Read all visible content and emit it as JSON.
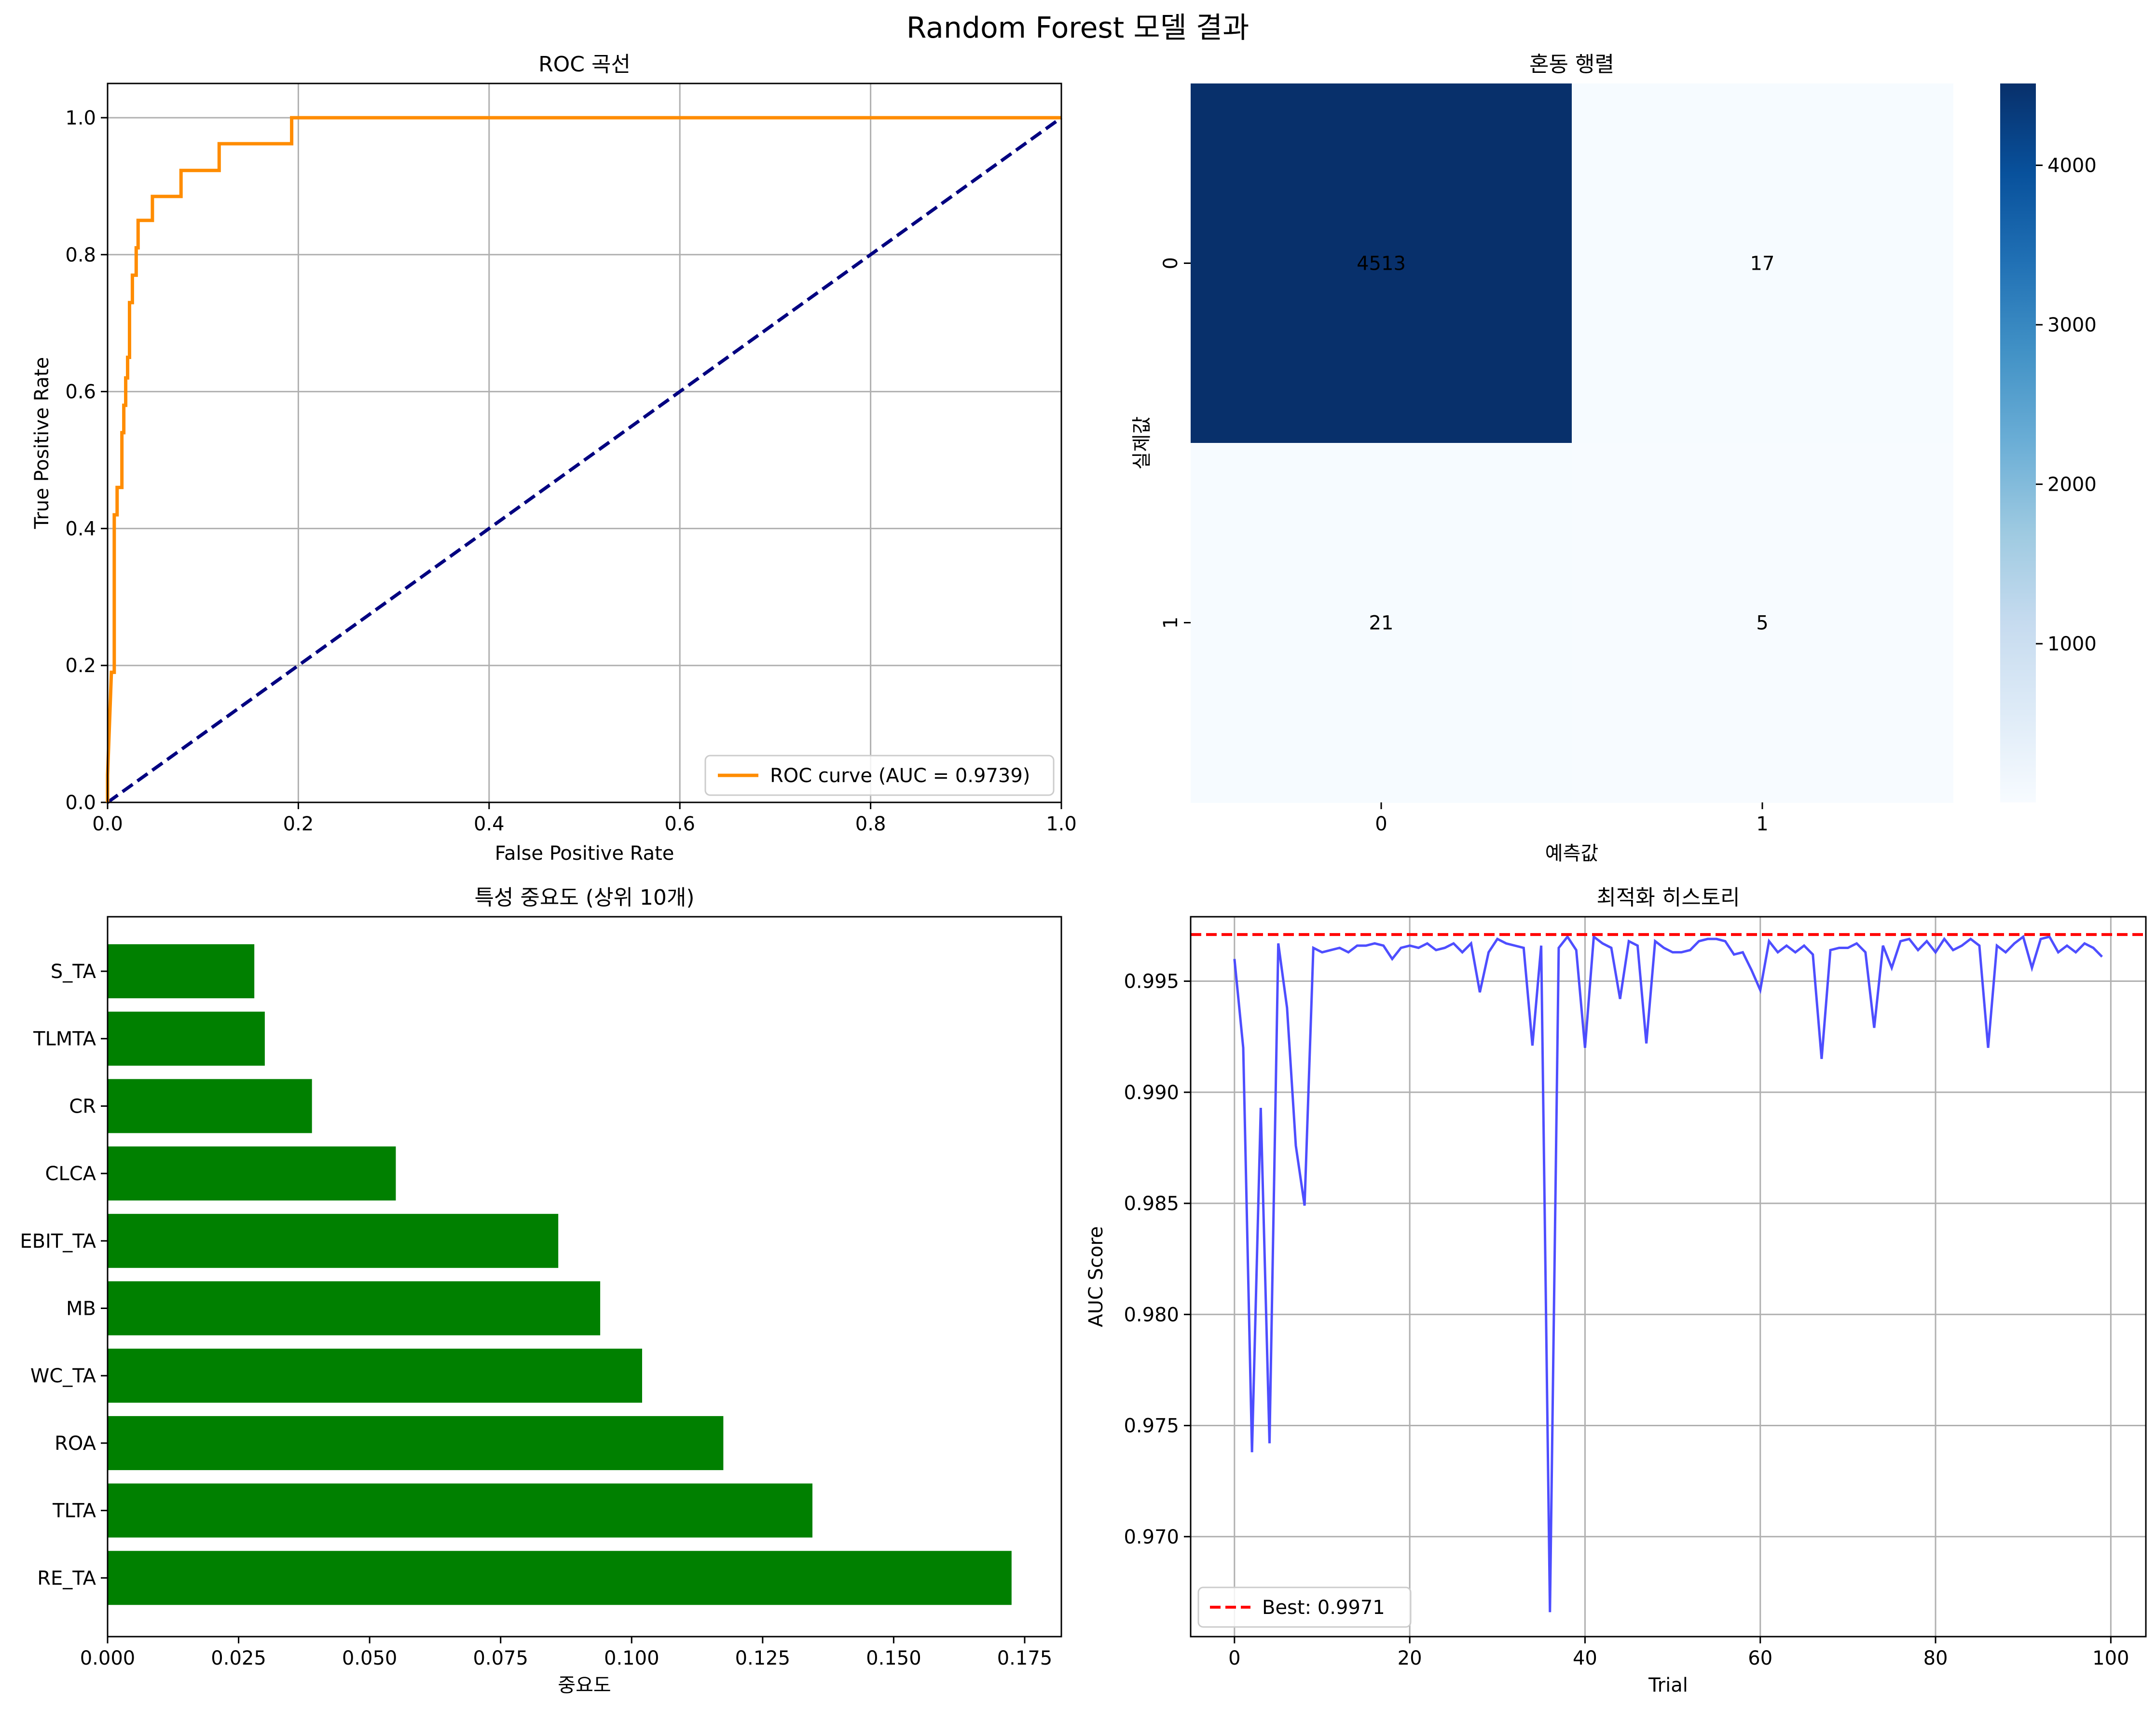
{
  "figure_title": "Random Forest 모델 결과",
  "colors": {
    "roc": "#ff8c00",
    "diagonal": "#000080",
    "bars": "#008000",
    "history": "#4444ff",
    "best": "#ff0000",
    "grid": "#b0b0b0",
    "cm_low": "#f7fbff",
    "cm_high": "#08306b"
  },
  "chart_data": [
    {
      "type": "line",
      "title": "ROC 곡선",
      "xlabel": "False Positive Rate",
      "ylabel": "True Positive Rate",
      "xlim": [
        0,
        1
      ],
      "ylim": [
        0,
        1.05
      ],
      "xticks": [
        "0.0",
        "0.2",
        "0.4",
        "0.6",
        "0.8",
        "1.0"
      ],
      "yticks": [
        "0.0",
        "0.2",
        "0.4",
        "0.6",
        "0.8",
        "1.0"
      ],
      "grid": true,
      "legend_position": "lower right",
      "series": [
        {
          "name": "ROC curve (AUC = 0.9739)",
          "style": "solid",
          "points": [
            [
              0,
              0
            ],
            [
              0,
              0.04
            ],
            [
              0.004,
              0.19
            ],
            [
              0.007,
              0.19
            ],
            [
              0.007,
              0.42
            ],
            [
              0.01,
              0.42
            ],
            [
              0.01,
              0.46
            ],
            [
              0.015,
              0.46
            ],
            [
              0.015,
              0.54
            ],
            [
              0.017,
              0.54
            ],
            [
              0.017,
              0.58
            ],
            [
              0.019,
              0.58
            ],
            [
              0.019,
              0.62
            ],
            [
              0.021,
              0.62
            ],
            [
              0.021,
              0.65
            ],
            [
              0.023,
              0.65
            ],
            [
              0.023,
              0.73
            ],
            [
              0.026,
              0.73
            ],
            [
              0.026,
              0.77
            ],
            [
              0.03,
              0.77
            ],
            [
              0.03,
              0.81
            ],
            [
              0.032,
              0.81
            ],
            [
              0.032,
              0.85
            ],
            [
              0.047,
              0.85
            ],
            [
              0.047,
              0.885
            ],
            [
              0.077,
              0.885
            ],
            [
              0.077,
              0.923
            ],
            [
              0.117,
              0.923
            ],
            [
              0.117,
              0.962
            ],
            [
              0.193,
              0.962
            ],
            [
              0.193,
              1.0
            ],
            [
              1.0,
              1.0
            ]
          ]
        },
        {
          "name": "",
          "style": "dashed",
          "points": [
            [
              0,
              0
            ],
            [
              1,
              1
            ]
          ]
        }
      ]
    },
    {
      "type": "heatmap",
      "title": "혼동 행렬",
      "xlabel": "예측값",
      "ylabel": "실제값",
      "x_categories": [
        "0",
        "1"
      ],
      "y_categories": [
        "0",
        "1"
      ],
      "values": [
        [
          4513,
          17
        ],
        [
          21,
          5
        ]
      ],
      "colorbar_ticks": [
        "1000",
        "2000",
        "3000",
        "4000"
      ],
      "colorbar_range": [
        5,
        4513
      ]
    },
    {
      "type": "bar",
      "orientation": "horizontal",
      "title": "특성 중요도 (상위 10개)",
      "xlabel": "중요도",
      "ylabel": "",
      "categories": [
        "RE_TA",
        "TLTA",
        "ROA",
        "WC_TA",
        "MB",
        "EBIT_TA",
        "CLCA",
        "CR",
        "TLMTA",
        "S_TA"
      ],
      "values": [
        0.1725,
        0.1345,
        0.1175,
        0.102,
        0.094,
        0.086,
        0.055,
        0.039,
        0.03,
        0.028
      ],
      "xlim": [
        0,
        0.182
      ],
      "xticks": [
        "0.000",
        "0.025",
        "0.050",
        "0.075",
        "0.100",
        "0.125",
        "0.150",
        "0.175"
      ]
    },
    {
      "type": "line",
      "title": "최적화 히스토리",
      "xlabel": "Trial",
      "ylabel": "AUC Score",
      "xlim": [
        -5,
        104
      ],
      "ylim": [
        0.9655,
        0.9979
      ],
      "xticks": [
        "0",
        "20",
        "40",
        "60",
        "80",
        "100"
      ],
      "yticks": [
        "0.970",
        "0.975",
        "0.980",
        "0.985",
        "0.990",
        "0.995"
      ],
      "grid": true,
      "legend_position": "lower left",
      "series": [
        {
          "name": "",
          "values": [
            0.996,
            0.992,
            0.9738,
            0.9893,
            0.9742,
            0.9967,
            0.9938,
            0.9876,
            0.9849,
            0.9965,
            0.9963,
            0.9964,
            0.9965,
            0.9963,
            0.9966,
            0.9966,
            0.9967,
            0.9966,
            0.996,
            0.9965,
            0.9966,
            0.9965,
            0.9967,
            0.9964,
            0.9965,
            0.9967,
            0.9963,
            0.9967,
            0.9945,
            0.9963,
            0.9969,
            0.9967,
            0.9966,
            0.9965,
            0.9921,
            0.9966,
            0.9666,
            0.9965,
            0.997,
            0.9964,
            0.992,
            0.997,
            0.9967,
            0.9965,
            0.9942,
            0.9968,
            0.9966,
            0.9922,
            0.9968,
            0.9965,
            0.9963,
            0.9963,
            0.9964,
            0.9968,
            0.9969,
            0.9969,
            0.9968,
            0.9962,
            0.9963,
            0.9955,
            0.9946,
            0.9968,
            0.9963,
            0.9966,
            0.9963,
            0.9966,
            0.9962,
            0.9915,
            0.9964,
            0.9965,
            0.9965,
            0.9967,
            0.9963,
            0.9929,
            0.9966,
            0.9956,
            0.9968,
            0.9969,
            0.9964,
            0.9968,
            0.9963,
            0.9969,
            0.9964,
            0.9966,
            0.9969,
            0.9966,
            0.992,
            0.9966,
            0.9963,
            0.9967,
            0.997,
            0.9956,
            0.9969,
            0.997,
            0.9963,
            0.9966,
            0.9963,
            0.9967,
            0.9965,
            0.9961
          ]
        },
        {
          "name": "Best: 0.9971",
          "style": "dashed",
          "hline": 0.9971
        }
      ]
    }
  ]
}
